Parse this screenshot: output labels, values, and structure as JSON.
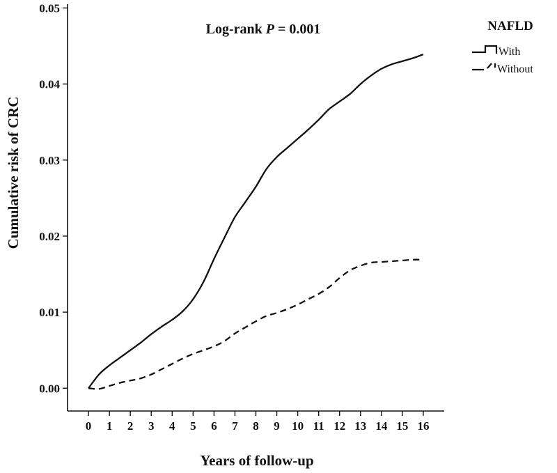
{
  "chart_data": {
    "type": "line",
    "title": "",
    "xlabel": "Years of follow-up",
    "ylabel": "Cumulative risk of CRC",
    "xlim": [
      -1,
      17
    ],
    "ylim": [
      -0.003,
      0.0505
    ],
    "xticks": [
      0,
      1,
      2,
      3,
      4,
      5,
      6,
      7,
      8,
      9,
      10,
      11,
      12,
      13,
      14,
      15,
      16
    ],
    "xtick_labels": [
      "0",
      "1",
      "2",
      "3",
      "4",
      "5",
      "6",
      "7",
      "8",
      "9",
      "10",
      "11",
      "12",
      "13",
      "14",
      "15",
      "16"
    ],
    "yticks": [
      0.0,
      0.01,
      0.02,
      0.03,
      0.04,
      0.05
    ],
    "ytick_labels": [
      "0.00",
      "0.01",
      "0.02",
      "0.03",
      "0.04",
      "0.05"
    ],
    "grid": false,
    "annotation": {
      "prefix": "Log-rank ",
      "italic": "P",
      "suffix": " = 0.001"
    },
    "legend": {
      "title": "NAFLD",
      "position": "top-right"
    },
    "series": [
      {
        "name": "With",
        "style": "solid",
        "color": "#111111",
        "x": [
          0,
          0.5,
          1,
          1.5,
          2,
          2.5,
          3,
          3.5,
          4,
          4.5,
          5,
          5.5,
          6,
          6.5,
          7,
          7.5,
          8,
          8.5,
          9,
          9.5,
          10,
          10.5,
          11,
          11.5,
          12,
          12.5,
          13,
          13.5,
          14,
          14.5,
          15,
          15.5,
          16
        ],
        "y": [
          0.0,
          0.0018,
          0.003,
          0.004,
          0.005,
          0.006,
          0.0071,
          0.0081,
          0.009,
          0.0101,
          0.0117,
          0.014,
          0.017,
          0.0198,
          0.0225,
          0.0245,
          0.0265,
          0.0288,
          0.0304,
          0.0316,
          0.0328,
          0.034,
          0.0353,
          0.0367,
          0.0377,
          0.0387,
          0.04,
          0.0411,
          0.042,
          0.0426,
          0.043,
          0.0434,
          0.0439
        ]
      },
      {
        "name": "Without",
        "style": "dashed",
        "color": "#111111",
        "x": [
          0,
          0.5,
          1,
          1.5,
          2,
          2.5,
          3,
          3.5,
          4,
          4.5,
          5,
          5.5,
          6,
          6.5,
          7,
          7.5,
          8,
          8.5,
          9,
          9.5,
          10,
          10.5,
          11,
          11.5,
          12,
          12.5,
          13,
          13.5,
          14,
          14.5,
          15,
          15.5,
          16
        ],
        "y": [
          0.0,
          -0.0001,
          0.0003,
          0.0007,
          0.001,
          0.0013,
          0.0018,
          0.0025,
          0.0032,
          0.0039,
          0.0045,
          0.005,
          0.0055,
          0.0062,
          0.0072,
          0.008,
          0.0088,
          0.0095,
          0.0099,
          0.0104,
          0.011,
          0.0117,
          0.0124,
          0.0133,
          0.0145,
          0.0155,
          0.0161,
          0.0165,
          0.0166,
          0.0167,
          0.0168,
          0.0169,
          0.0169
        ]
      }
    ]
  }
}
